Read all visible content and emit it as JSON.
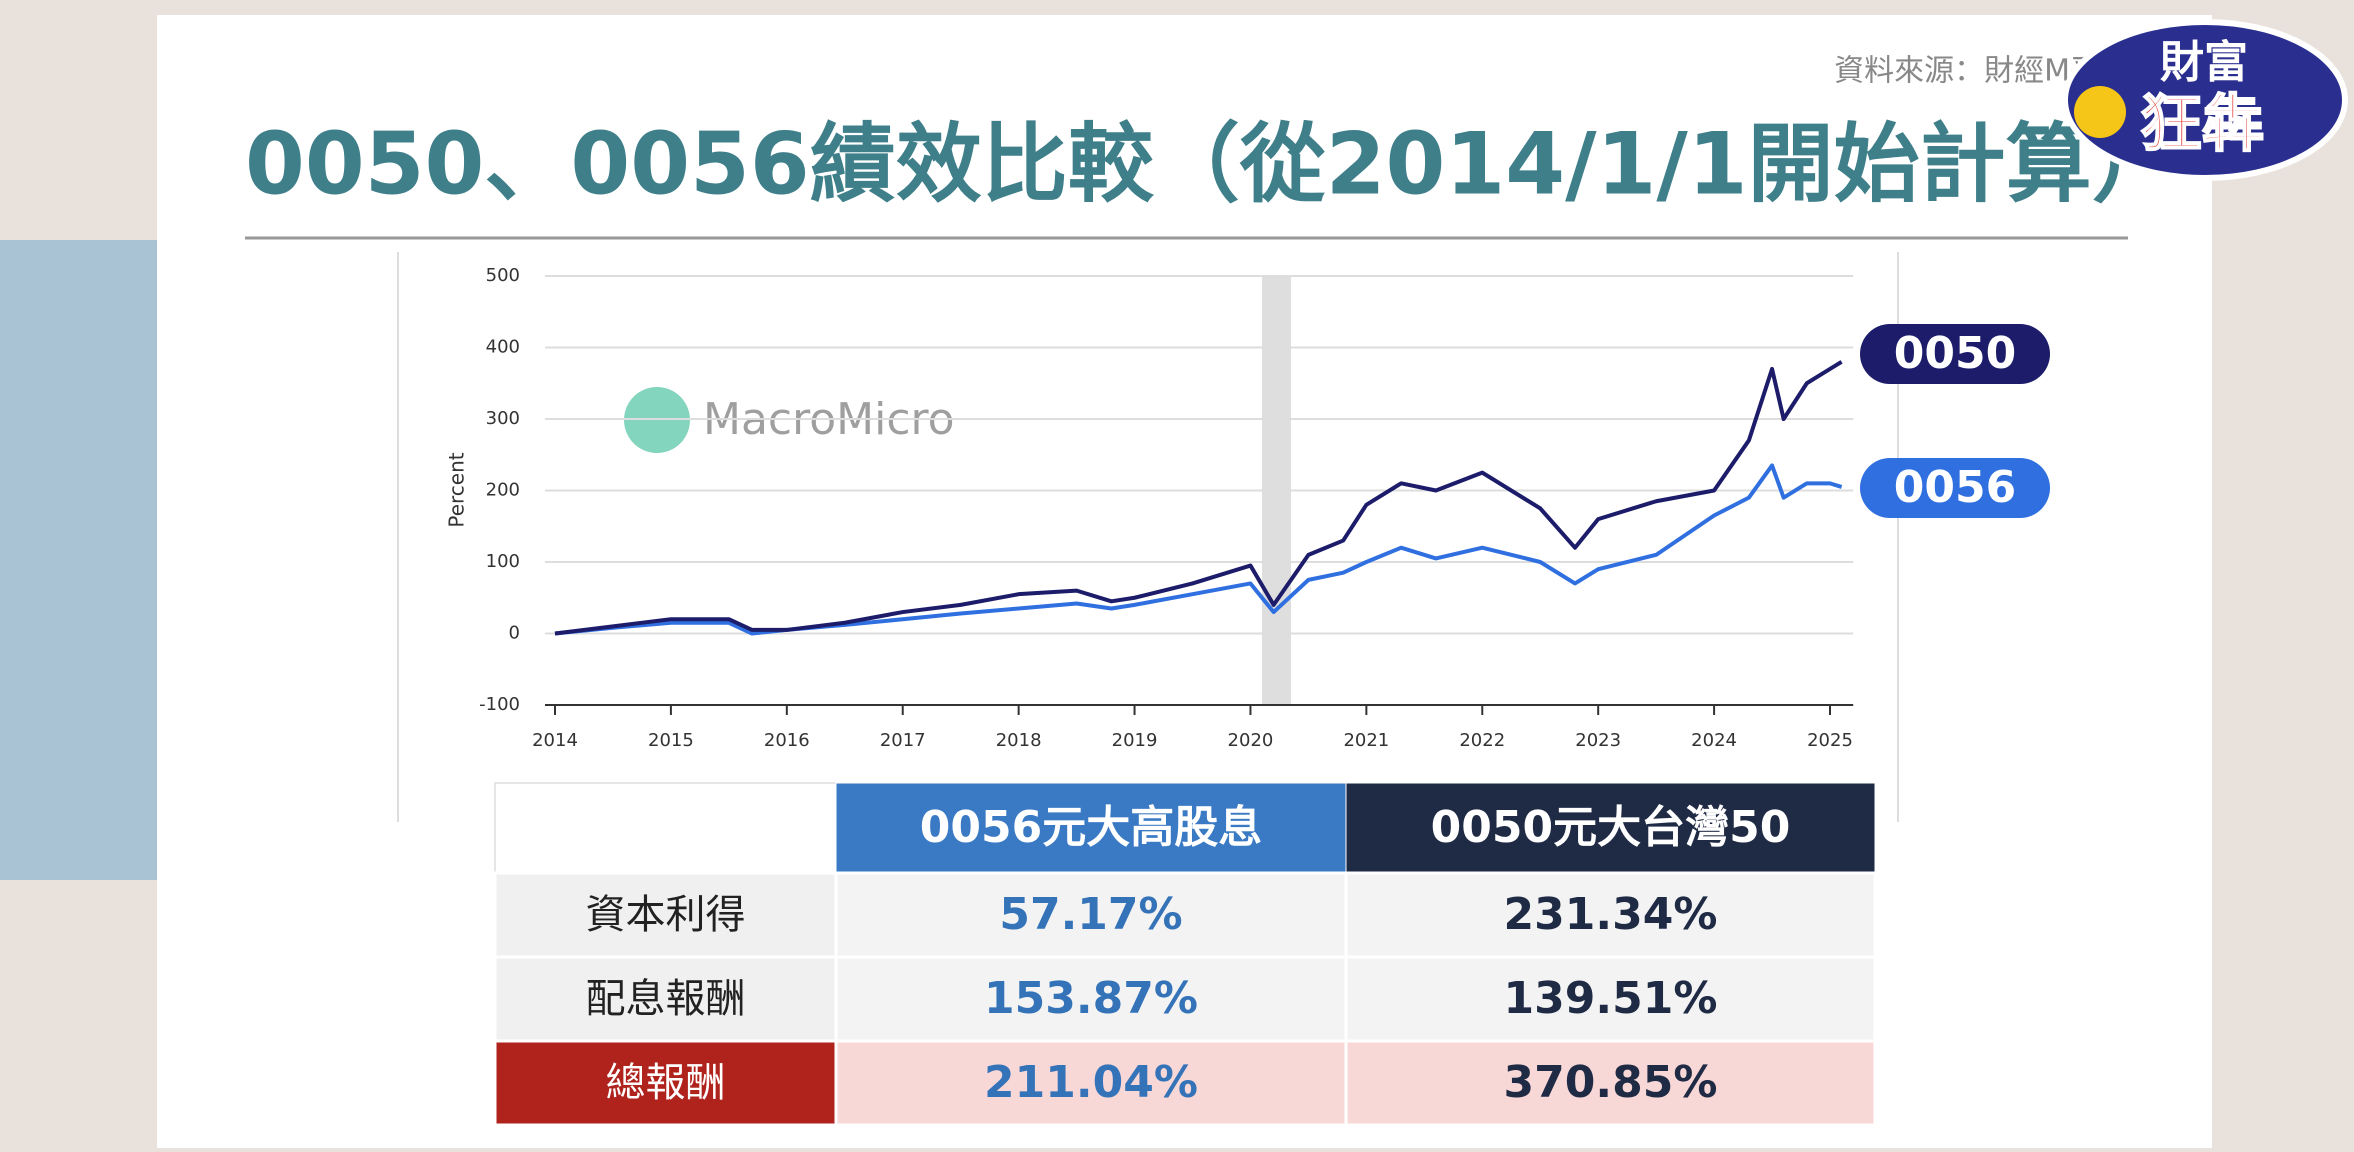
{
  "header": {
    "title": "0050、0056績效比較（從2014/1/1開始計算）",
    "source": "資料來源：財經M平"
  },
  "logo": [
    "財富",
    "狂犇"
  ],
  "chart_data": {
    "type": "line",
    "y_label": "Percent",
    "watermark": "MacroMicro",
    "x": [
      2014,
      2014.5,
      2015,
      2015.5,
      2015.7,
      2016,
      2016.5,
      2017,
      2017.5,
      2018,
      2018.5,
      2018.8,
      2019,
      2019.5,
      2020,
      2020.2,
      2020.5,
      2020.8,
      2021,
      2021.3,
      2021.6,
      2022,
      2022.5,
      2022.8,
      2023,
      2023.5,
      2024,
      2024.3,
      2024.5,
      2024.6,
      2024.8,
      2025,
      2025.1
    ],
    "series": [
      {
        "name": "0050",
        "color": "#1c1c6a",
        "values": [
          0,
          10,
          20,
          20,
          5,
          5,
          15,
          30,
          40,
          55,
          60,
          45,
          50,
          70,
          95,
          40,
          110,
          130,
          180,
          210,
          200,
          225,
          175,
          120,
          160,
          185,
          200,
          270,
          370,
          300,
          350,
          370,
          380
        ]
      },
      {
        "name": "0056",
        "color": "#2f6fe0",
        "values": [
          0,
          8,
          15,
          15,
          0,
          5,
          12,
          20,
          28,
          35,
          42,
          35,
          40,
          55,
          70,
          30,
          75,
          85,
          100,
          120,
          105,
          120,
          100,
          70,
          90,
          110,
          165,
          190,
          235,
          190,
          210,
          210,
          205
        ]
      }
    ],
    "shaded_range": [
      2020.1,
      2020.35
    ],
    "xlim": [
      2014,
      2025.2
    ],
    "xticks": [
      2014,
      2015,
      2016,
      2017,
      2018,
      2019,
      2020,
      2021,
      2022,
      2023,
      2024,
      2025
    ],
    "ylim": [
      -100,
      500
    ],
    "yticks": [
      -100,
      0,
      100,
      200,
      300,
      400,
      500
    ],
    "grid": true
  },
  "table": {
    "columns": [
      "0056元大高股息",
      "0050元大台灣50"
    ],
    "rows": [
      [
        "資本利得",
        "57.17%",
        "231.34%"
      ],
      [
        "配息報酬",
        "153.87%",
        "139.51%"
      ],
      [
        "總報酬",
        "211.04%",
        "370.85%"
      ]
    ]
  }
}
